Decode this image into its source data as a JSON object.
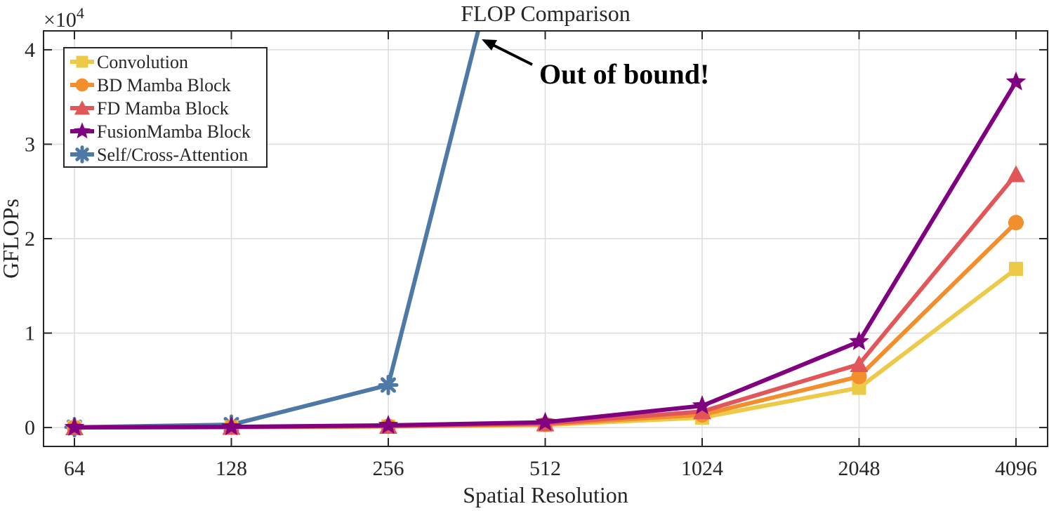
{
  "chart_data": {
    "type": "line",
    "title": "FLOP Comparison",
    "xlabel": "Spatial Resolution",
    "ylabel": "GFLOPs",
    "y_exponent_label": "×10",
    "y_exponent": "4",
    "categories": [
      "64",
      "128",
      "256",
      "512",
      "1024",
      "2048",
      "4096"
    ],
    "ylim": [
      -2000,
      42000
    ],
    "yticks": [
      0,
      10000,
      20000,
      30000,
      40000
    ],
    "ytick_labels": [
      "0",
      "1",
      "2",
      "3",
      "4"
    ],
    "grid": true,
    "legend_position": "top-left",
    "annotation": "Out of bound!",
    "series": [
      {
        "name": "Convolution",
        "color": "#EDC948",
        "marker": "square",
        "values": [
          8,
          30,
          110,
          280,
          1050,
          4200,
          16800
        ]
      },
      {
        "name": "BD Mamba Block",
        "color": "#F28E2B",
        "marker": "circle",
        "values": [
          10,
          40,
          130,
          340,
          1350,
          5400,
          21700
        ]
      },
      {
        "name": "FD Mamba Block",
        "color": "#E15759",
        "marker": "triangle",
        "values": [
          12,
          50,
          160,
          420,
          1700,
          6700,
          26800
        ]
      },
      {
        "name": "FusionMamba Block",
        "color": "#800080",
        "marker": "star",
        "values": [
          16,
          70,
          230,
          560,
          2300,
          9100,
          36600
        ]
      },
      {
        "name": "Self/Cross-Attention",
        "color": "#4E79A7",
        "marker": "asterisk",
        "values": [
          30,
          300,
          4500,
          70000,
          null,
          null,
          null
        ]
      }
    ]
  }
}
